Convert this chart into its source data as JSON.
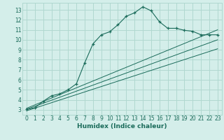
{
  "bg_color": "#d4eeea",
  "grid_color": "#b0d8d0",
  "line_color": "#1a6b5a",
  "xlabel": "Humidex (Indice chaleur)",
  "xlim": [
    -0.5,
    23.5
  ],
  "ylim": [
    2.5,
    13.7
  ],
  "xticks": [
    0,
    1,
    2,
    3,
    4,
    5,
    6,
    7,
    8,
    9,
    10,
    11,
    12,
    13,
    14,
    15,
    16,
    17,
    18,
    19,
    20,
    21,
    22,
    23
  ],
  "yticks": [
    3,
    4,
    5,
    6,
    7,
    8,
    9,
    10,
    11,
    12,
    13
  ],
  "line1_x": [
    0,
    1,
    2,
    3,
    4,
    5,
    6,
    7,
    8,
    9,
    10,
    11,
    12,
    13,
    14,
    15,
    16,
    17,
    18,
    19,
    20,
    21,
    22,
    23
  ],
  "line1_y": [
    3.05,
    3.2,
    3.85,
    4.4,
    4.6,
    5.0,
    5.6,
    7.7,
    9.6,
    10.5,
    10.8,
    11.5,
    12.35,
    12.7,
    13.3,
    12.9,
    11.8,
    11.15,
    11.15,
    10.95,
    10.85,
    10.5,
    10.5,
    10.5
  ],
  "line2_x": [
    0,
    23
  ],
  "line2_y": [
    3.15,
    11.0
  ],
  "line3_x": [
    0,
    23
  ],
  "line3_y": [
    3.05,
    10.0
  ],
  "line4_x": [
    0,
    23
  ],
  "line4_y": [
    2.9,
    9.1
  ]
}
